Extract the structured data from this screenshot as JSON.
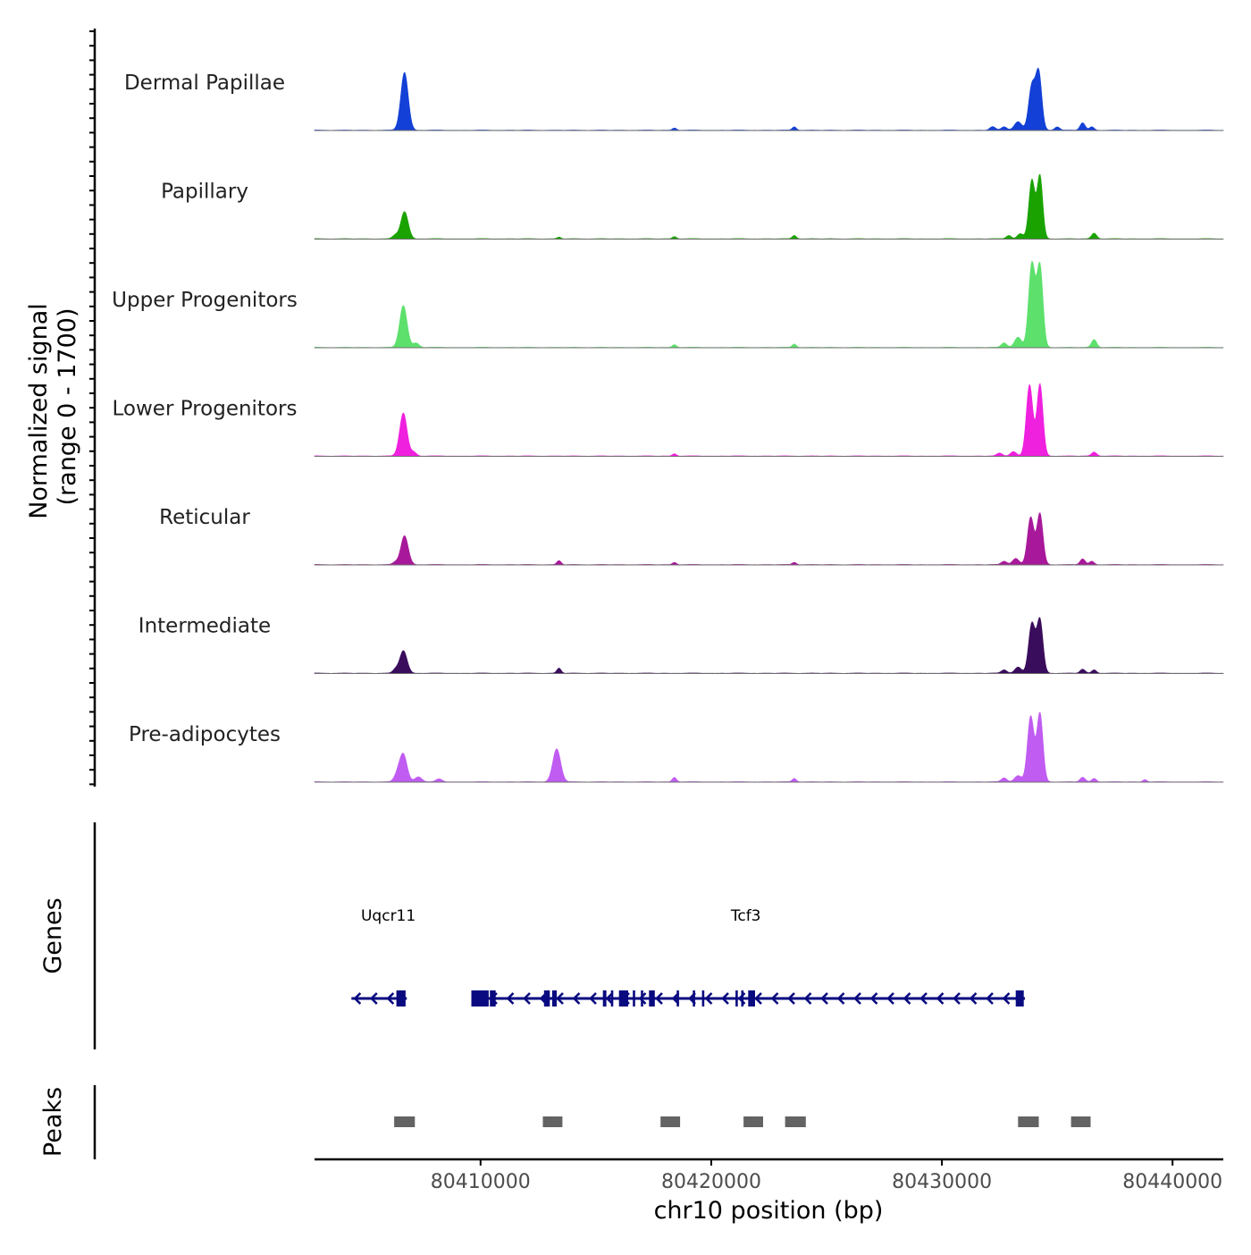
{
  "chart_data": {
    "type": "area",
    "title": "",
    "ylabel_line1": "Normalized signal",
    "ylabel_line2": "(range 0 - 1700)",
    "xlabel": "chr10 position (bp)",
    "chromosome": "chr10",
    "signal_range": [
      0,
      1700
    ],
    "xlim": [
      80402800,
      80442200
    ],
    "x_ticks": [
      80410000,
      80420000,
      80430000,
      80440000
    ],
    "x_tick_labels": [
      "80410000",
      "80420000",
      "80430000",
      "80440000"
    ],
    "tracks": [
      {
        "name": "Dermal Papillae",
        "color": "#1340D6",
        "peaks": [
          [
            80406700,
            1020,
            160
          ],
          [
            80418400,
            40,
            90
          ],
          [
            80423600,
            60,
            90
          ],
          [
            80432200,
            60,
            120
          ],
          [
            80432700,
            60,
            120
          ],
          [
            80433300,
            150,
            160
          ],
          [
            80433900,
            780,
            140
          ],
          [
            80434200,
            1000,
            130
          ],
          [
            80435000,
            60,
            110
          ],
          [
            80436100,
            130,
            110
          ],
          [
            80436500,
            60,
            100
          ]
        ]
      },
      {
        "name": "Papillary",
        "color": "#1AA300",
        "peaks": [
          [
            80406700,
            480,
            160
          ],
          [
            80406300,
            60,
            120
          ],
          [
            80413400,
            30,
            80
          ],
          [
            80418400,
            40,
            90
          ],
          [
            80423600,
            60,
            90
          ],
          [
            80432900,
            60,
            110
          ],
          [
            80433400,
            90,
            130
          ],
          [
            80433900,
            1040,
            130
          ],
          [
            80434250,
            1110,
            120
          ],
          [
            80436600,
            100,
            110
          ]
        ]
      },
      {
        "name": "Upper Progenitors",
        "color": "#5DE06C",
        "peaks": [
          [
            80406650,
            740,
            160
          ],
          [
            80407200,
            80,
            130
          ],
          [
            80418400,
            50,
            90
          ],
          [
            80423600,
            60,
            90
          ],
          [
            80432700,
            80,
            120
          ],
          [
            80433300,
            180,
            150
          ],
          [
            80433900,
            1480,
            140
          ],
          [
            80434250,
            1430,
            130
          ],
          [
            80436600,
            140,
            110
          ]
        ]
      },
      {
        "name": "Lower Progenitors",
        "color": "#F020DF",
        "peaks": [
          [
            80406650,
            760,
            160
          ],
          [
            80407100,
            70,
            120
          ],
          [
            80418400,
            40,
            90
          ],
          [
            80432500,
            50,
            120
          ],
          [
            80433100,
            80,
            130
          ],
          [
            80433800,
            1260,
            140
          ],
          [
            80434250,
            1270,
            130
          ],
          [
            80436600,
            70,
            110
          ]
        ]
      },
      {
        "name": "Reticular",
        "color": "#A8189A",
        "peaks": [
          [
            80406700,
            510,
            160
          ],
          [
            80406300,
            40,
            110
          ],
          [
            80413400,
            70,
            90
          ],
          [
            80418400,
            40,
            90
          ],
          [
            80423600,
            40,
            90
          ],
          [
            80432700,
            60,
            120
          ],
          [
            80433200,
            110,
            140
          ],
          [
            80433850,
            840,
            140
          ],
          [
            80434250,
            900,
            130
          ],
          [
            80436100,
            100,
            110
          ],
          [
            80436500,
            60,
            100
          ]
        ]
      },
      {
        "name": "Intermediate",
        "color": "#3A0C5C",
        "peaks": [
          [
            80406650,
            400,
            160
          ],
          [
            80406300,
            60,
            110
          ],
          [
            80413400,
            90,
            90
          ],
          [
            80432700,
            60,
            120
          ],
          [
            80433300,
            110,
            140
          ],
          [
            80433900,
            880,
            140
          ],
          [
            80434250,
            940,
            130
          ],
          [
            80436100,
            70,
            110
          ],
          [
            80436600,
            60,
            100
          ]
        ]
      },
      {
        "name": "Pre-adipocytes",
        "color": "#C05CF2",
        "peaks": [
          [
            80406650,
            480,
            160
          ],
          [
            80406400,
            120,
            140
          ],
          [
            80407300,
            90,
            150
          ],
          [
            80408200,
            50,
            130
          ],
          [
            80413300,
            580,
            170
          ],
          [
            80418400,
            80,
            90
          ],
          [
            80423600,
            60,
            90
          ],
          [
            80432700,
            70,
            120
          ],
          [
            80433300,
            110,
            150
          ],
          [
            80433850,
            1160,
            140
          ],
          [
            80434250,
            1210,
            130
          ],
          [
            80436100,
            80,
            110
          ],
          [
            80436600,
            60,
            100
          ],
          [
            80438800,
            40,
            90
          ]
        ]
      }
    ],
    "genes": [
      {
        "name": "Uqcr11",
        "start": 80404400,
        "end": 80406800,
        "strand": "-",
        "label_x": 80406000,
        "exons": [
          [
            80406350,
            80406750
          ]
        ]
      },
      {
        "name": "Tcf3",
        "start": 80409600,
        "end": 80433600,
        "strand": "-",
        "label_x": 80421500,
        "exons": [
          [
            80409600,
            80410350
          ],
          [
            80410400,
            80410650
          ],
          [
            80412750,
            80413000
          ],
          [
            80413100,
            80413300
          ],
          [
            80415300,
            80415450
          ],
          [
            80415650,
            80415750
          ],
          [
            80416000,
            80416400
          ],
          [
            80416600,
            80416700
          ],
          [
            80416950,
            80417050
          ],
          [
            80417300,
            80417550
          ],
          [
            80418500,
            80418600
          ],
          [
            80419200,
            80419300
          ],
          [
            80419600,
            80419700
          ],
          [
            80421050,
            80421150
          ],
          [
            80421300,
            80421400
          ],
          [
            80421600,
            80421900
          ],
          [
            80433200,
            80433550
          ]
        ]
      }
    ],
    "peak_regions": [
      [
        80406250,
        80407150
      ],
      [
        80412700,
        80413550
      ],
      [
        80417800,
        80418650
      ],
      [
        80421400,
        80422250
      ],
      [
        80423200,
        80424100
      ],
      [
        80433300,
        80434200
      ],
      [
        80435600,
        80436450
      ]
    ],
    "panels": [
      "Signal",
      "Genes",
      "Peaks"
    ],
    "panel_labels": {
      "genes": "Genes",
      "peaks": "Peaks"
    },
    "colors": {
      "gene": "#0A0A80",
      "peak_region": "#636363",
      "axis": "#000000",
      "baseline": "#6E6E6E"
    }
  }
}
